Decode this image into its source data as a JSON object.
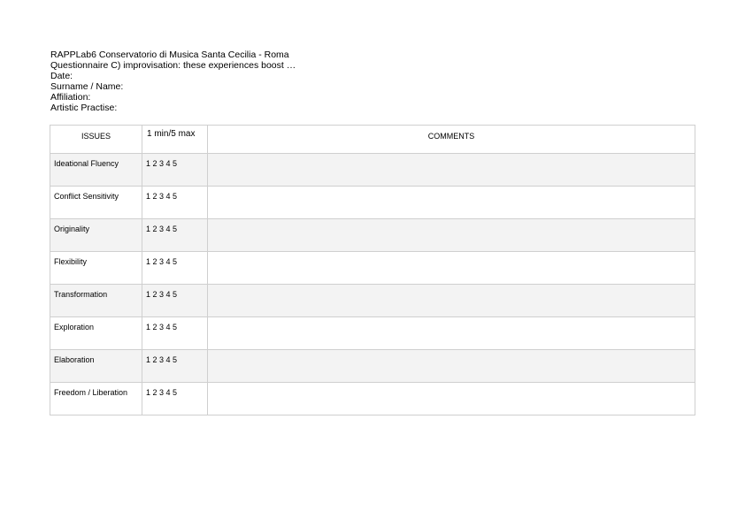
{
  "header": {
    "lines": [
      "RAPPLab6 Conservatorio di Musica Santa Cecilia - Roma",
      "Questionnaire C) improvisation: these experiences boost …",
      "Date:",
      "Surname / Name:",
      "Affiliation:",
      "Artistic Practise:"
    ]
  },
  "table": {
    "columns": [
      "ISSUES",
      "1 min/5 max",
      "COMMENTS"
    ],
    "rows": [
      {
        "issue": "Ideational Fluency",
        "scale": "1 2 3 4 5",
        "comment": ""
      },
      {
        "issue": "Conflict Sensitivity",
        "scale": "1 2 3 4 5",
        "comment": ""
      },
      {
        "issue": "Originality",
        "scale": "1 2 3 4 5",
        "comment": ""
      },
      {
        "issue": "Flexibility",
        "scale": "1 2 3 4 5",
        "comment": ""
      },
      {
        "issue": "Transformation",
        "scale": "1 2 3 4 5",
        "comment": ""
      },
      {
        "issue": "Exploration",
        "scale": "1 2 3 4 5",
        "comment": ""
      },
      {
        "issue": "Elaboration",
        "scale": "1 2 3 4 5",
        "comment": ""
      },
      {
        "issue": "Freedom / Liberation",
        "scale": "1 2 3 4 5",
        "comment": ""
      }
    ]
  }
}
